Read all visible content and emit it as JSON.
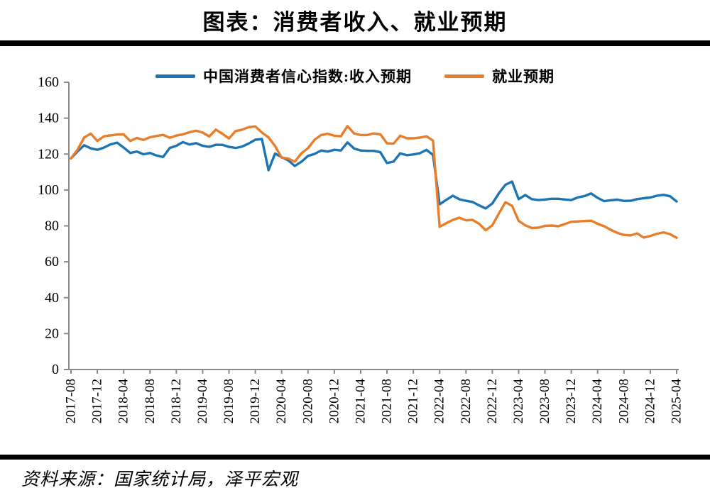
{
  "title": "图表：消费者收入、就业预期",
  "source": "资料来源：国家统计局，泽平宏观",
  "chart_data": {
    "type": "line",
    "title": "图表：消费者收入、就业预期",
    "xlabel": "",
    "ylabel": "",
    "ylim": [
      0,
      160
    ],
    "yticks": [
      0,
      20,
      40,
      60,
      80,
      100,
      120,
      140,
      160
    ],
    "grid": false,
    "legend_position": "top",
    "axis_color": "#8a8a8a",
    "x_tick_every": 4,
    "x_tick_labels": [
      "2017-08",
      "2017-12",
      "2018-04",
      "2018-08",
      "2018-12",
      "2019-04",
      "2019-08",
      "2019-12",
      "2020-04",
      "2020-08",
      "2020-12",
      "2021-04",
      "2021-08",
      "2021-12",
      "2022-04",
      "2022-08",
      "2022-12",
      "2023-04",
      "2023-08",
      "2023-12",
      "2024-04",
      "2024-08",
      "2024-12",
      "2025-04"
    ],
    "x": [
      "2017-08",
      "2017-09",
      "2017-10",
      "2017-11",
      "2017-12",
      "2018-01",
      "2018-02",
      "2018-03",
      "2018-04",
      "2018-05",
      "2018-06",
      "2018-07",
      "2018-08",
      "2018-09",
      "2018-10",
      "2018-11",
      "2018-12",
      "2019-01",
      "2019-02",
      "2019-03",
      "2019-04",
      "2019-05",
      "2019-06",
      "2019-07",
      "2019-08",
      "2019-09",
      "2019-10",
      "2019-11",
      "2019-12",
      "2020-01",
      "2020-02",
      "2020-03",
      "2020-04",
      "2020-05",
      "2020-06",
      "2020-07",
      "2020-08",
      "2020-09",
      "2020-10",
      "2020-11",
      "2020-12",
      "2021-01",
      "2021-02",
      "2021-03",
      "2021-04",
      "2021-05",
      "2021-06",
      "2021-07",
      "2021-08",
      "2021-09",
      "2021-10",
      "2021-11",
      "2021-12",
      "2022-01",
      "2022-02",
      "2022-03",
      "2022-04",
      "2022-05",
      "2022-06",
      "2022-07",
      "2022-08",
      "2022-09",
      "2022-10",
      "2022-11",
      "2022-12",
      "2023-01",
      "2023-02",
      "2023-03",
      "2023-04",
      "2023-05",
      "2023-06",
      "2023-07",
      "2023-08",
      "2023-09",
      "2023-10",
      "2023-11",
      "2023-12",
      "2024-01",
      "2024-02",
      "2024-03",
      "2024-04",
      "2024-05",
      "2024-06",
      "2024-07",
      "2024-08",
      "2024-09",
      "2024-10",
      "2024-11",
      "2024-12",
      "2025-01",
      "2025-02",
      "2025-03",
      "2025-04"
    ],
    "series": [
      {
        "name": "中国消费者信心指数:收入预期",
        "color": "#1b74b4",
        "values": [
          117.6,
          121.5,
          124.9,
          123.2,
          122.4,
          123.6,
          125.4,
          126.4,
          123.6,
          120.6,
          121.4,
          119.9,
          120.6,
          119.2,
          118.4,
          123.4,
          124.6,
          126.7,
          125.3,
          126.1,
          124.6,
          124.0,
          125.2,
          125.1,
          124.0,
          123.4,
          124.2,
          125.9,
          128.0,
          128.4,
          111.0,
          120.3,
          118.3,
          116.5,
          113.4,
          115.7,
          119.0,
          120.1,
          122.0,
          121.4,
          122.4,
          122.0,
          126.5,
          123.1,
          122.0,
          121.8,
          121.8,
          121.0,
          115.0,
          115.8,
          120.4,
          119.4,
          119.8,
          120.5,
          122.3,
          119.5,
          92.0,
          94.5,
          96.8,
          94.8,
          94.0,
          93.3,
          91.4,
          89.7,
          92.5,
          98.2,
          102.9,
          104.7,
          94.9,
          97.2,
          94.9,
          94.4,
          94.7,
          95.1,
          95.1,
          94.7,
          94.4,
          95.9,
          96.6,
          98.1,
          95.6,
          93.8,
          94.3,
          94.6,
          93.9,
          94.0,
          94.9,
          95.4,
          95.8,
          96.8,
          97.3,
          96.5,
          93.6
        ]
      },
      {
        "name": "就业预期",
        "color": "#e87e29",
        "values": [
          117.6,
          122.5,
          129.2,
          131.4,
          127.3,
          129.9,
          130.4,
          130.9,
          131.0,
          127.3,
          129.0,
          127.9,
          129.4,
          130.1,
          130.7,
          129.1,
          130.3,
          131.0,
          132.2,
          133.0,
          132.0,
          129.8,
          133.6,
          131.3,
          128.7,
          132.8,
          133.6,
          135.0,
          135.4,
          132.0,
          129.3,
          124.5,
          118.0,
          117.5,
          115.8,
          120.4,
          123.3,
          128.0,
          130.6,
          131.3,
          130.2,
          129.9,
          135.6,
          131.5,
          130.6,
          130.6,
          131.5,
          131.0,
          126.0,
          125.8,
          130.2,
          128.8,
          128.8,
          129.2,
          129.9,
          127.5,
          79.5,
          81.5,
          83.3,
          84.6,
          83.1,
          83.3,
          81.2,
          77.6,
          80.3,
          87.0,
          93.2,
          91.2,
          82.8,
          80.3,
          78.8,
          79.0,
          80.0,
          80.2,
          79.8,
          81.0,
          82.3,
          82.5,
          82.7,
          82.9,
          81.2,
          79.8,
          77.8,
          76.1,
          75.0,
          74.7,
          75.8,
          73.5,
          74.4,
          75.6,
          76.4,
          75.4,
          73.4
        ]
      }
    ]
  }
}
